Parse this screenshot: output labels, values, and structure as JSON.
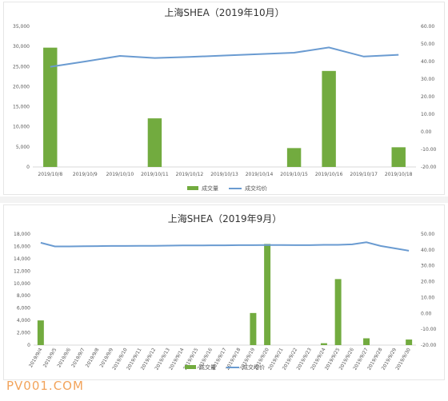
{
  "chart_data": [
    {
      "type": "bar",
      "title": "上海SHEA（2019年10月）",
      "categories": [
        "2019/10/8",
        "2019/10/9",
        "2019/10/10",
        "2019/10/11",
        "2019/10/12",
        "2019/10/13",
        "2019/10/14",
        "2019/10/15",
        "2019/10/16",
        "2019/10/17",
        "2019/10/18"
      ],
      "series": [
        {
          "name": "成交量",
          "type": "bar",
          "axis": "left",
          "values": [
            29700,
            0,
            0,
            12100,
            0,
            0,
            0,
            4700,
            23900,
            0,
            4900
          ]
        },
        {
          "name": "成交均价",
          "type": "line",
          "axis": "right",
          "values": [
            37,
            40,
            43.2,
            42,
            42.6,
            43.4,
            44.2,
            45,
            48,
            42.8,
            43.8
          ]
        }
      ],
      "ylim": [
        0,
        35000
      ],
      "yticks": [
        "0",
        "5,000",
        "10,000",
        "15,000",
        "20,000",
        "25,000",
        "30,000",
        "35,000"
      ],
      "y2lim": [
        -20,
        60
      ],
      "y2ticks": [
        "-20.00",
        "-10.00",
        "0.00",
        "10.00",
        "20.00",
        "30.00",
        "40.00",
        "50.00",
        "60.00"
      ],
      "legend": "bottom",
      "grid": false,
      "colors": {
        "bar": "#72ab3f",
        "line": "#6a9bd1"
      }
    },
    {
      "type": "bar",
      "title": "上海SHEA（2019年9月）",
      "categories": [
        "2019/9/4",
        "2019/9/5",
        "2019/9/6",
        "2019/9/7",
        "2019/9/8",
        "2019/9/9",
        "2019/9/10",
        "2019/9/11",
        "2019/9/12",
        "2019/9/13",
        "2019/9/14",
        "2019/9/15",
        "2019/9/16",
        "2019/9/17",
        "2019/9/18",
        "2019/9/19",
        "2019/9/20",
        "2019/9/21",
        "2019/9/22",
        "2019/9/23",
        "2019/9/24",
        "2019/9/25",
        "2019/9/26",
        "2019/9/27",
        "2019/9/28",
        "2019/9/29",
        "2019/9/30"
      ],
      "series": [
        {
          "name": "成交量",
          "type": "bar",
          "axis": "left",
          "values": [
            4000,
            0,
            0,
            0,
            0,
            0,
            0,
            0,
            0,
            0,
            0,
            0,
            0,
            0,
            0,
            5200,
            16400,
            0,
            0,
            0,
            300,
            10700,
            0,
            1100,
            0,
            0,
            900
          ]
        },
        {
          "name": "成交均价",
          "type": "line",
          "axis": "right",
          "values": [
            44.5,
            42.2,
            42.2,
            42.3,
            42.4,
            42.5,
            42.5,
            42.6,
            42.6,
            42.7,
            42.8,
            42.8,
            42.9,
            42.9,
            43,
            43,
            43.1,
            43.1,
            43,
            43,
            43.2,
            43.2,
            43.5,
            44.8,
            42.5,
            41,
            39.5
          ]
        }
      ],
      "ylim": [
        0,
        18000
      ],
      "yticks": [
        "0",
        "2,000",
        "4,000",
        "6,000",
        "8,000",
        "10,000",
        "12,000",
        "14,000",
        "16,000",
        "18,000"
      ],
      "y2lim": [
        -20,
        50
      ],
      "y2ticks": [
        "-20.00",
        "-10.00",
        "0.00",
        "10.00",
        "20.00",
        "30.00",
        "40.00",
        "50.00"
      ],
      "legend": "bottom",
      "grid": false,
      "colors": {
        "bar": "#72ab3f",
        "line": "#6a9bd1"
      }
    }
  ],
  "watermark": "PV001.COM"
}
